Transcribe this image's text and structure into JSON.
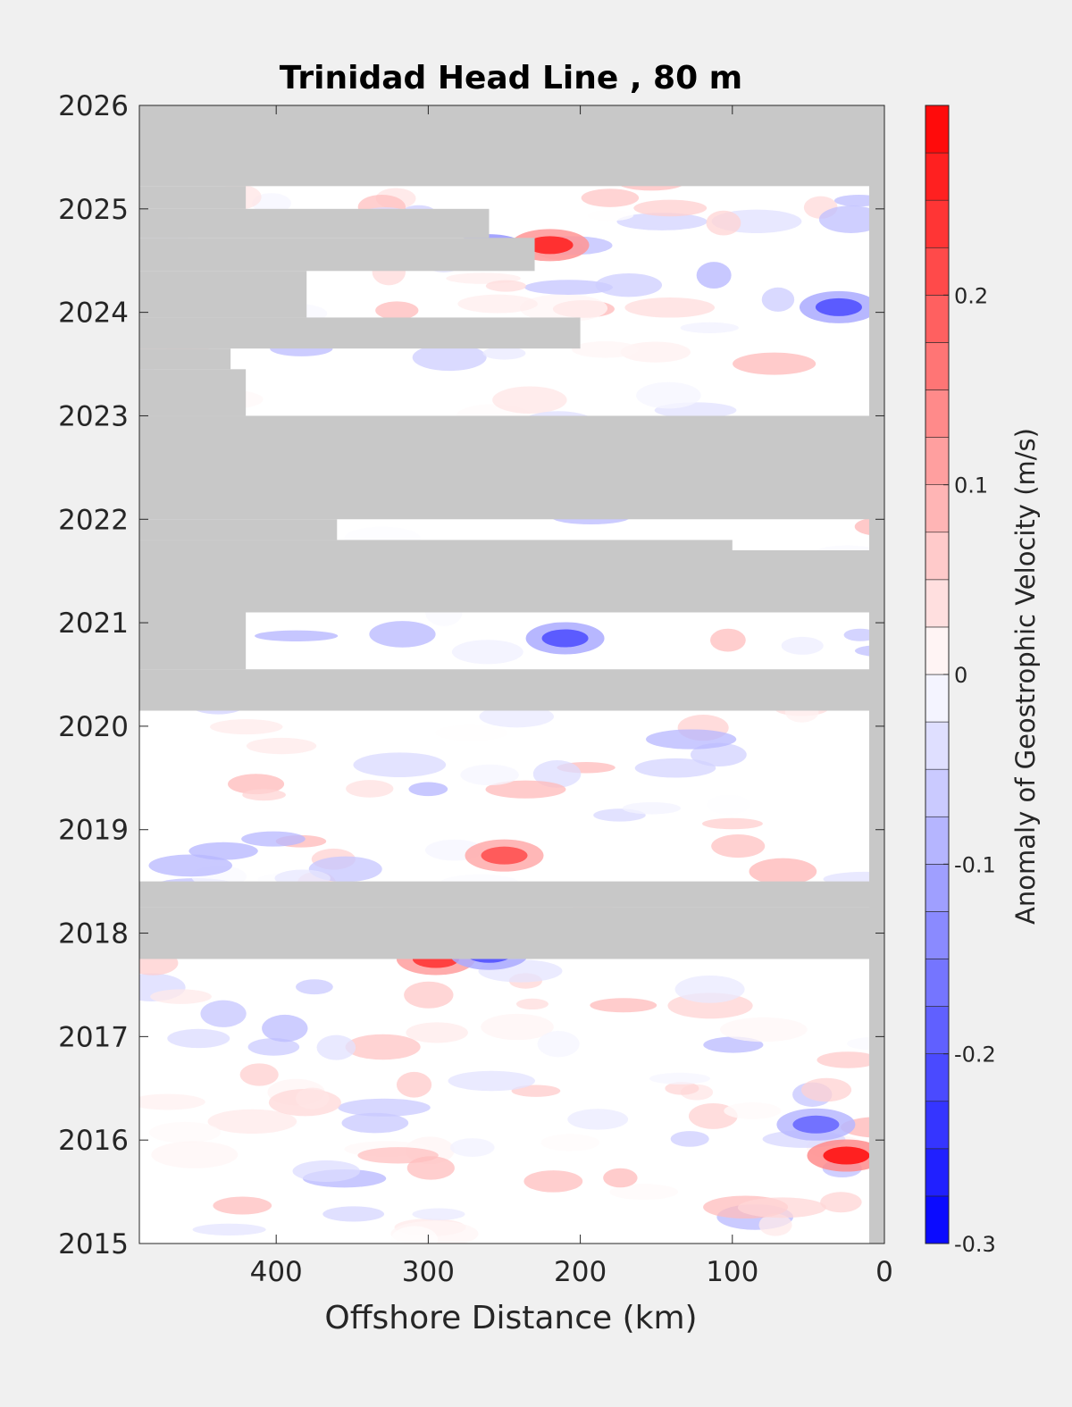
{
  "chart_data": {
    "type": "heatmap",
    "title": "Trinidad Head Line , 80 m",
    "xlabel": "Offshore Distance (km)",
    "xlim": [
      490,
      0
    ],
    "x_ticks": [
      400,
      300,
      200,
      100,
      0
    ],
    "x_tick_labels": [
      "400",
      "300",
      "200",
      "100",
      "0"
    ],
    "ylim": [
      2015,
      2026
    ],
    "y_ticks": [
      2015,
      2016,
      2017,
      2018,
      2019,
      2020,
      2021,
      2022,
      2023,
      2024,
      2025,
      2026
    ],
    "y_tick_labels": [
      "2015",
      "2016",
      "2017",
      "2018",
      "2019",
      "2020",
      "2021",
      "2022",
      "2023",
      "2024",
      "2025",
      "2026"
    ],
    "colorbar": {
      "label": "Anomaly of Geostrophic Velocity (m/s)",
      "range": [
        -0.3,
        0.3
      ],
      "levels": 24,
      "ticks": [
        -0.3,
        -0.2,
        -0.1,
        0,
        0.1,
        0.2
      ],
      "tick_labels": [
        "-0.3",
        "-0.2",
        "-0.1",
        "0",
        "0.1",
        "0.2"
      ],
      "low_color": "#0000ff",
      "mid_color": "#ffffff",
      "high_color": "#ff0000"
    },
    "missing_color": "#c8c8c8",
    "data_gaps": [
      {
        "y": [
          2025.22,
          2026.0
        ],
        "x": [
          490,
          0
        ]
      },
      {
        "y": [
          2025.0,
          2025.22
        ],
        "x": [
          490,
          420
        ]
      },
      {
        "y": [
          2024.72,
          2025.0
        ],
        "x": [
          490,
          260
        ]
      },
      {
        "y": [
          2024.4,
          2024.72
        ],
        "x": [
          490,
          230
        ]
      },
      {
        "y": [
          2023.95,
          2024.4
        ],
        "x": [
          490,
          380
        ]
      },
      {
        "y": [
          2023.65,
          2023.95
        ],
        "x": [
          490,
          200
        ]
      },
      {
        "y": [
          2023.45,
          2023.65
        ],
        "x": [
          490,
          430
        ]
      },
      {
        "y": [
          2023.0,
          2023.45
        ],
        "x": [
          490,
          420
        ]
      },
      {
        "y": [
          2022.0,
          2023.0
        ],
        "x": [
          490,
          0
        ]
      },
      {
        "y": [
          2021.8,
          2022.0
        ],
        "x": [
          490,
          360
        ]
      },
      {
        "y": [
          2021.7,
          2021.8
        ],
        "x": [
          490,
          100
        ]
      },
      {
        "y": [
          2021.1,
          2021.7
        ],
        "x": [
          490,
          0
        ]
      },
      {
        "y": [
          2020.55,
          2021.1
        ],
        "x": [
          490,
          420
        ]
      },
      {
        "y": [
          2020.15,
          2020.55
        ],
        "x": [
          490,
          0
        ]
      },
      {
        "y": [
          2018.25,
          2018.5
        ],
        "x": [
          490,
          0
        ]
      },
      {
        "y": [
          2017.75,
          2018.25
        ],
        "x": [
          490,
          0
        ]
      }
    ],
    "notable_anomalies": [
      {
        "x": 220,
        "y": 2024.65,
        "value": 0.25
      },
      {
        "x": 260,
        "y": 2024.6,
        "value": -0.25
      },
      {
        "x": 30,
        "y": 2024.05,
        "value": -0.2
      },
      {
        "x": 250,
        "y": 2018.75,
        "value": 0.2
      },
      {
        "x": 295,
        "y": 2017.75,
        "value": 0.23
      },
      {
        "x": 260,
        "y": 2017.8,
        "value": -0.2
      },
      {
        "x": 25,
        "y": 2015.85,
        "value": 0.27
      },
      {
        "x": 45,
        "y": 2016.15,
        "value": -0.17
      },
      {
        "x": 210,
        "y": 2020.85,
        "value": -0.2
      }
    ]
  }
}
